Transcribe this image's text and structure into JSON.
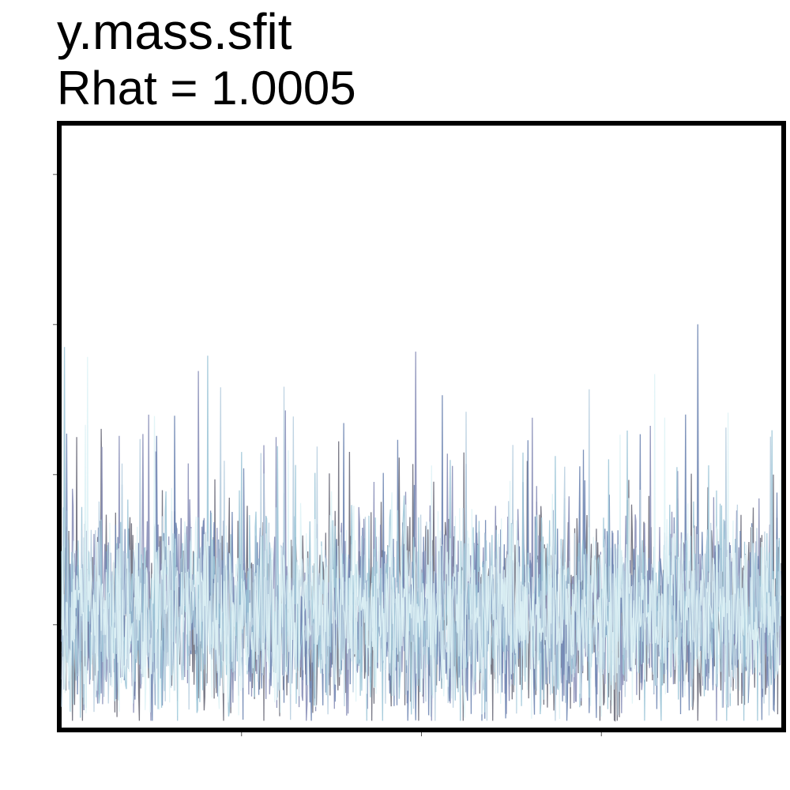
{
  "chart_data": {
    "type": "line",
    "title": "y.mass.sfit",
    "subtitle": "Rhat = 1.0005",
    "xlabel": "",
    "ylabel": "",
    "x_range": [
      0,
      1000
    ],
    "y_range": [
      0,
      1
    ],
    "x_ticks": [
      250,
      500,
      750
    ],
    "y_ticks": [
      0.17,
      0.42,
      0.67,
      0.92
    ],
    "tick_labels_shown": false,
    "grid": false,
    "legend": "none",
    "colors": [
      "#6b6b7a",
      "#8a8fb8",
      "#6f86b3",
      "#9fc7d8",
      "#b9cfe0",
      "#dff3f6"
    ],
    "series": [
      {
        "seed": 11,
        "center": 0.18,
        "spread": 0.16
      },
      {
        "seed": 23,
        "center": 0.19,
        "spread": 0.15
      },
      {
        "seed": 37,
        "center": 0.18,
        "spread": 0.15
      },
      {
        "seed": 41,
        "center": 0.19,
        "spread": 0.16
      },
      {
        "seed": 53,
        "center": 0.18,
        "spread": 0.14
      },
      {
        "seed": 67,
        "center": 0.19,
        "spread": 0.15
      }
    ]
  }
}
